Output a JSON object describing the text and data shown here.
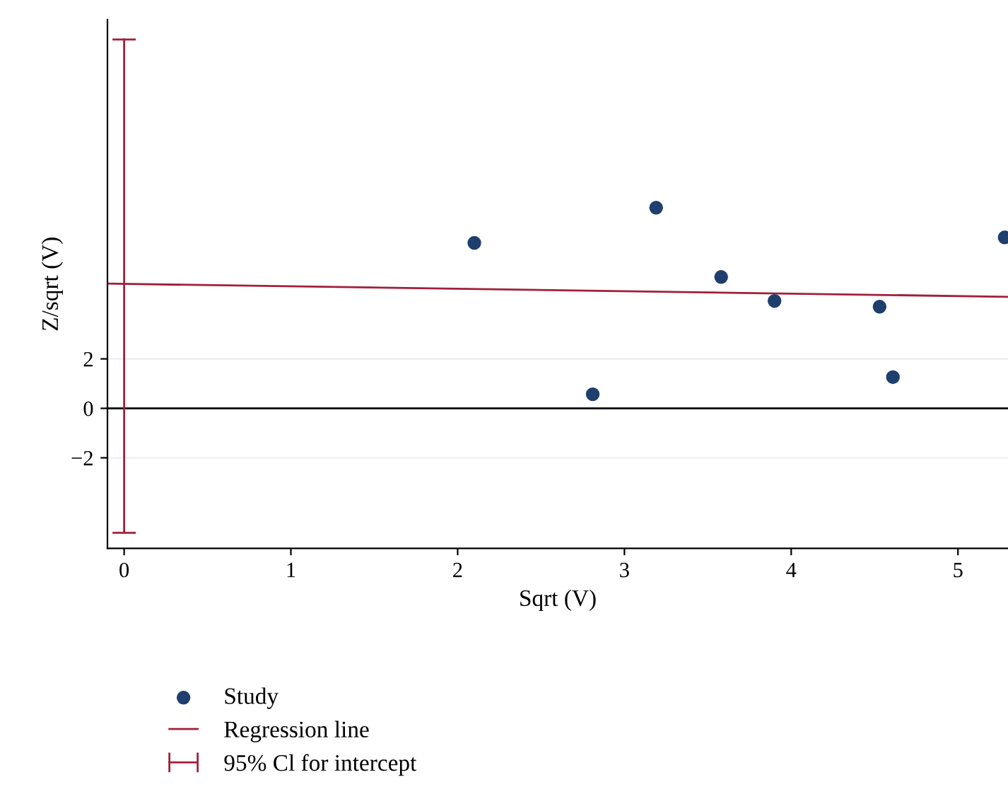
{
  "chart_data": {
    "type": "scatter",
    "xlabel": "Sqrt (V)",
    "ylabel": "Z/sqrt (V)",
    "xlim": [
      -0.1,
      5.3
    ],
    "ylim": [
      -5.66,
      15.71
    ],
    "xticks": [
      0,
      1,
      2,
      3,
      4,
      5
    ],
    "yticks": [
      {
        "value": -2,
        "label": "−2"
      },
      0,
      2
    ],
    "grid": "y",
    "legend": "bottom left",
    "ref_lines": [
      {
        "axis": "y",
        "value": 0,
        "color": "#000000"
      }
    ],
    "series": [
      {
        "name": "Study",
        "marker": "circle",
        "color": "#1f3f6e",
        "x": [
          2.1,
          2.81,
          3.19,
          3.58,
          3.9,
          4.53,
          4.61,
          5.28
        ],
        "values": [
          6.69,
          0.57,
          8.11,
          5.31,
          4.34,
          4.11,
          1.26,
          6.91
        ]
      },
      {
        "name": "Regression line",
        "type": "line",
        "color": "#a0203a",
        "x": [
          -0.1,
          5.3
        ],
        "values": [
          5.04,
          4.51
        ],
        "marker": "none"
      },
      {
        "name": "95% Cl for intercept",
        "type": "line",
        "color": "#a0203a",
        "x": [
          0,
          0
        ],
        "values": [
          -5.03,
          14.91
        ],
        "marker": "none"
      }
    ]
  }
}
